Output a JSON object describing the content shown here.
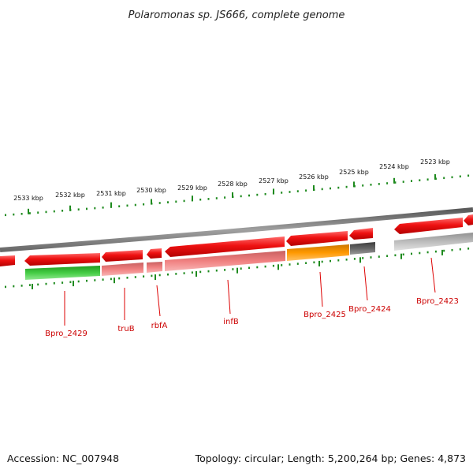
{
  "title": "Polaromonas sp. JS666, complete genome",
  "footer": {
    "accession": "Accession: NC_007948",
    "summary": "Topology: circular; Length: 5,200,264 bp; Genes: 4,873"
  },
  "scale_labels": [
    "2533 kbp",
    "2532 kbp",
    "2531 kbp",
    "2530 kbp",
    "2529 kbp",
    "2528 kbp",
    "2527 kbp",
    "2526 kbp",
    "2525 kbp",
    "2524 kbp",
    "2523 kbp"
  ],
  "gene_labels": [
    "Bpro_2429",
    "truB",
    "rbfA",
    "infB",
    "Bpro_2425",
    "Bpro_2424",
    "Bpro_2423"
  ],
  "colors": {
    "cds": "#ee0000",
    "tick": "#1e8a1e",
    "label": "#cc0000",
    "backbone": "#8a8a8a",
    "feature_green": "#33bb33",
    "feature_pink": "#f08080",
    "feature_orange": "#ff9900",
    "feature_dark": "#555555",
    "feature_grey": "#b0b0b0"
  }
}
